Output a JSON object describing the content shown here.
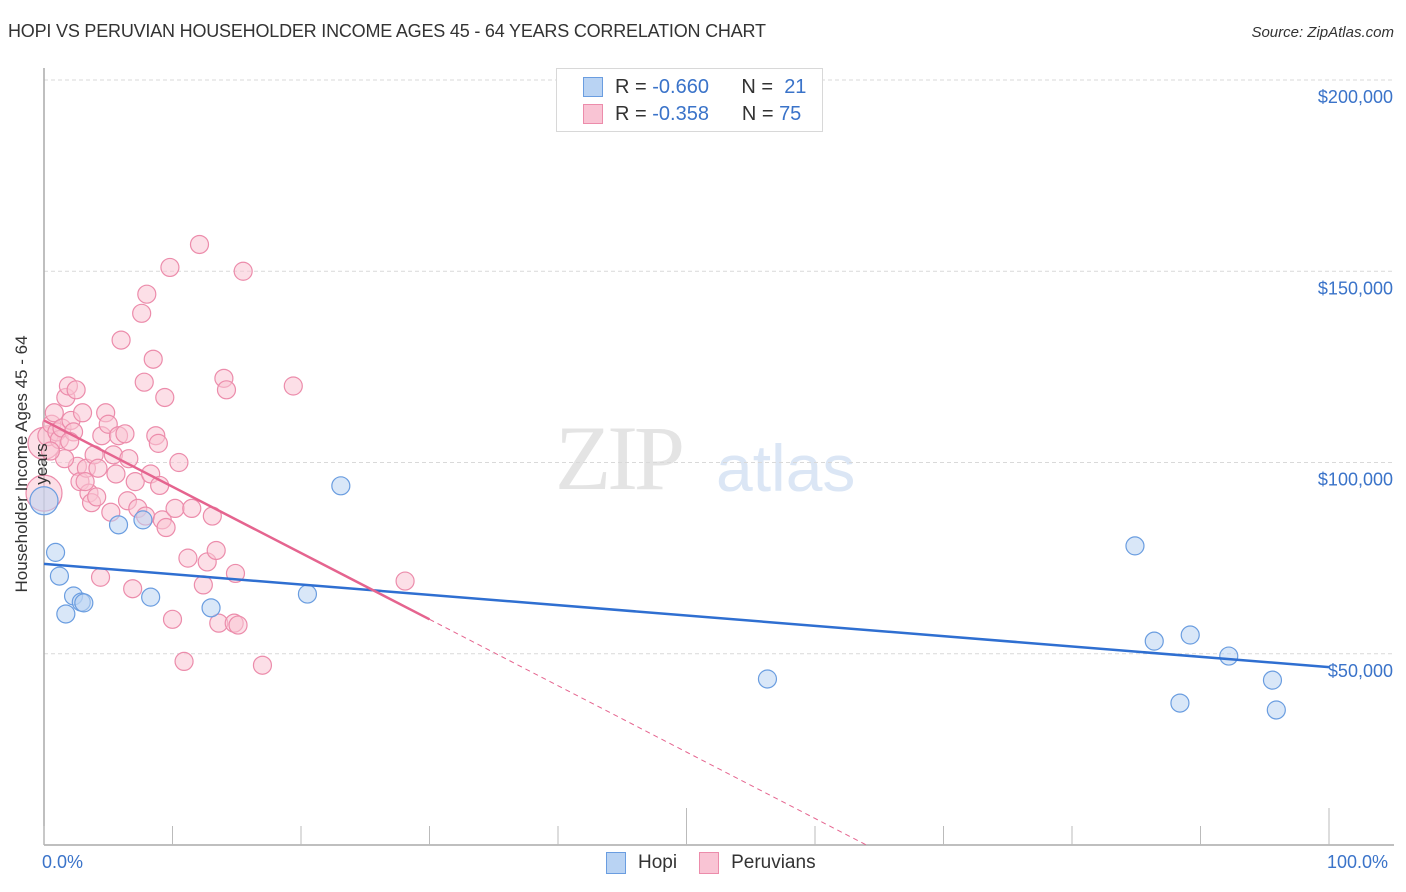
{
  "header": {
    "title": "HOPI VS PERUVIAN HOUSEHOLDER INCOME AGES 45 - 64 YEARS CORRELATION CHART",
    "source": "Source: ZipAtlas.com"
  },
  "watermark": {
    "zip": "ZIP",
    "atlas": "atlas"
  },
  "legend_stats": {
    "hopi": {
      "r_label": "R =",
      "r_value": "-0.660",
      "n_label": "N =",
      "n_value": "21"
    },
    "peruvians": {
      "r_label": "R =",
      "r_value": "-0.358",
      "n_label": "N =",
      "n_value": "75"
    }
  },
  "axes": {
    "y_title": "Householder Income Ages 45 - 64 years",
    "x_min_label": "0.0%",
    "x_max_label": "100.0%",
    "y_ticks": [
      "$200,000",
      "$150,000",
      "$100,000",
      "$50,000"
    ]
  },
  "bottom_legend": {
    "hopi": "Hopi",
    "peruvians": "Peruvians"
  },
  "colors": {
    "hopi_fill": "#b9d3f3",
    "hopi_stroke": "#6a9de0",
    "hopi_line": "#2f6fd1",
    "peru_fill": "#f9c4d4",
    "peru_stroke": "#ec8cab",
    "peru_line": "#e5648f",
    "axis_text": "#3a73c9"
  },
  "chart_data": {
    "type": "scatter",
    "title": "Hopi vs Peruvian Householder Income Ages 45 - 64 Years Correlation Chart",
    "xlabel": "",
    "ylabel": "Householder Income Ages 45 - 64 years",
    "xlim": [
      0,
      100
    ],
    "ylim": [
      0,
      205000
    ],
    "x_tick_labels": [
      "0.0%",
      "100.0%"
    ],
    "y_tick_values": [
      50000,
      100000,
      150000,
      200000
    ],
    "grid": "horizontal dashed",
    "legend_position": "top-center and bottom-center",
    "series": [
      {
        "name": "Hopi",
        "r": -0.66,
        "n": 21,
        "trend": {
          "x": [
            0,
            100
          ],
          "y": [
            73500,
            46500
          ]
        },
        "points": [
          [
            0.0,
            90000,
            14
          ],
          [
            0.9,
            76500,
            9
          ],
          [
            1.2,
            70300,
            9
          ],
          [
            1.7,
            60400,
            9
          ],
          [
            2.3,
            65100,
            9
          ],
          [
            2.9,
            63500,
            9
          ],
          [
            3.1,
            63300,
            9
          ],
          [
            5.8,
            83700,
            9
          ],
          [
            7.7,
            85000,
            9
          ],
          [
            8.3,
            64800,
            9
          ],
          [
            13.0,
            62000,
            9
          ],
          [
            20.5,
            65600,
            9
          ],
          [
            23.1,
            93900,
            9
          ],
          [
            56.3,
            43400,
            9
          ],
          [
            84.9,
            78200,
            9
          ],
          [
            86.4,
            53300,
            9
          ],
          [
            88.4,
            37100,
            9
          ],
          [
            89.2,
            54900,
            9
          ],
          [
            92.2,
            49400,
            9
          ],
          [
            95.6,
            43100,
            9
          ],
          [
            95.9,
            35300,
            9
          ]
        ]
      },
      {
        "name": "Peruvians",
        "r": -0.358,
        "n": 75,
        "trend": {
          "x": [
            0,
            30
          ],
          "y": [
            111000,
            59000
          ]
        },
        "trend_dashed": {
          "x": [
            30,
            64
          ],
          "y": [
            59000,
            0
          ]
        },
        "points": [
          [
            0.0,
            92000,
            18
          ],
          [
            0.0,
            105000,
            16
          ],
          [
            0.3,
            107000,
            10
          ],
          [
            0.6,
            110000,
            9
          ],
          [
            0.8,
            113000,
            9
          ],
          [
            1.0,
            108000,
            9
          ],
          [
            1.2,
            106000,
            9
          ],
          [
            1.4,
            109000,
            9
          ],
          [
            1.7,
            117000,
            9
          ],
          [
            1.9,
            120000,
            9
          ],
          [
            2.1,
            111000,
            9
          ],
          [
            2.3,
            108000,
            9
          ],
          [
            2.5,
            119000,
            9
          ],
          [
            2.6,
            99000,
            9
          ],
          [
            2.8,
            95000,
            9
          ],
          [
            3.0,
            113000,
            9
          ],
          [
            3.3,
            98500,
            9
          ],
          [
            3.5,
            92000,
            9
          ],
          [
            3.7,
            89500,
            9
          ],
          [
            3.9,
            102000,
            9
          ],
          [
            4.1,
            91000,
            9
          ],
          [
            4.4,
            70000,
            9
          ],
          [
            4.5,
            107000,
            9
          ],
          [
            4.8,
            113000,
            9
          ],
          [
            5.0,
            110000,
            9
          ],
          [
            5.2,
            87000,
            9
          ],
          [
            5.4,
            102000,
            9
          ],
          [
            5.6,
            97000,
            9
          ],
          [
            5.8,
            107000,
            9
          ],
          [
            6.0,
            132000,
            9
          ],
          [
            6.3,
            107500,
            9
          ],
          [
            6.5,
            90000,
            9
          ],
          [
            6.6,
            101000,
            9
          ],
          [
            6.9,
            67000,
            9
          ],
          [
            7.1,
            95000,
            9
          ],
          [
            7.3,
            88000,
            9
          ],
          [
            7.6,
            139000,
            9
          ],
          [
            7.8,
            121000,
            9
          ],
          [
            7.9,
            86000,
            9
          ],
          [
            8.0,
            144000,
            9
          ],
          [
            8.3,
            97000,
            9
          ],
          [
            8.5,
            127000,
            9
          ],
          [
            8.7,
            107000,
            9
          ],
          [
            8.9,
            105000,
            9
          ],
          [
            9.0,
            94000,
            9
          ],
          [
            9.2,
            85000,
            9
          ],
          [
            9.4,
            117000,
            9
          ],
          [
            9.5,
            83000,
            9
          ],
          [
            9.8,
            151000,
            9
          ],
          [
            10.0,
            59000,
            9
          ],
          [
            10.2,
            88000,
            9
          ],
          [
            10.5,
            100000,
            9
          ],
          [
            10.9,
            48000,
            9
          ],
          [
            11.2,
            75000,
            9
          ],
          [
            11.5,
            88000,
            9
          ],
          [
            12.1,
            157000,
            9
          ],
          [
            12.4,
            68000,
            9
          ],
          [
            12.7,
            74000,
            9
          ],
          [
            13.1,
            86000,
            9
          ],
          [
            13.4,
            77000,
            9
          ],
          [
            13.6,
            58000,
            9
          ],
          [
            14.0,
            122000,
            9
          ],
          [
            14.2,
            119000,
            9
          ],
          [
            14.9,
            71000,
            9
          ],
          [
            14.8,
            58000,
            9
          ],
          [
            15.1,
            57500,
            9
          ],
          [
            15.5,
            150000,
            9
          ],
          [
            17.0,
            47000,
            9
          ],
          [
            19.4,
            120000,
            9
          ],
          [
            1.6,
            101000,
            9
          ],
          [
            2.0,
            105500,
            9
          ],
          [
            3.2,
            95000,
            9
          ],
          [
            4.2,
            98500,
            9
          ],
          [
            28.1,
            69000,
            9
          ],
          [
            0.5,
            103000,
            9
          ]
        ]
      }
    ]
  }
}
